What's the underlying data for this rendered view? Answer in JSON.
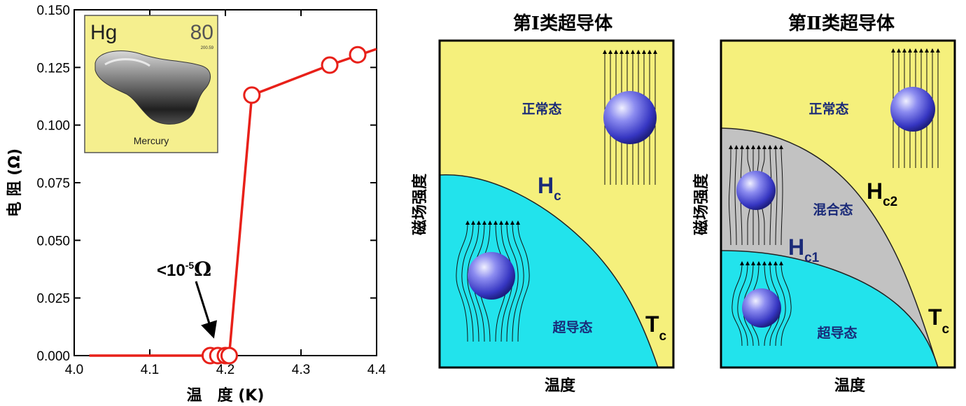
{
  "chart_data": {
    "type": "line",
    "xlabel": "温　度 (K)",
    "ylabel": "电 阻 (Ω)",
    "xlim": [
      4.0,
      4.4
    ],
    "ylim": [
      0.0,
      0.15
    ],
    "x_ticks": [
      "4.0",
      "4.1",
      "4.2",
      "4.3",
      "4.4"
    ],
    "y_ticks": [
      "0.000",
      "0.025",
      "0.050",
      "0.075",
      "0.100",
      "0.125",
      "0.150"
    ],
    "series": [
      {
        "line": [
          [
            4.02,
            0.0
          ],
          [
            4.2,
            0.0
          ],
          [
            4.205,
            0.0
          ],
          [
            4.235,
            0.113
          ],
          [
            4.338,
            0.126
          ],
          [
            4.4,
            0.133
          ]
        ],
        "markers": [
          [
            4.18,
            0.0
          ],
          [
            4.19,
            0.0
          ],
          [
            4.2,
            0.0
          ],
          [
            4.205,
            0.0
          ],
          [
            4.235,
            0.113
          ],
          [
            4.338,
            0.126
          ],
          [
            4.375,
            0.1305
          ]
        ],
        "color": "#e82019"
      }
    ],
    "annotation": {
      "text_prefix": "<10",
      "exponent": "-5",
      "unit": "Ω",
      "points_to": [
        4.185,
        0.0
      ]
    },
    "inset": {
      "symbol": "Hg",
      "number": "80",
      "mass": "200.59",
      "name": "Mercury"
    }
  },
  "diagram_type1": {
    "title": "第Ⅰ类超导体",
    "ylabel": "磁场强度",
    "xlabel": "温度",
    "normal_label": "正常态",
    "super_label": "超导态",
    "hc_main": "H",
    "hc_sub": "c",
    "tc_main": "T",
    "tc_sub": "c"
  },
  "diagram_type2": {
    "title": "第Ⅱ类超导体",
    "ylabel": "磁场强度",
    "xlabel": "温度",
    "normal_label": "正常态",
    "mixed_label": "混合态",
    "super_label": "超导态",
    "hc2_main": "H",
    "hc2_sub": "c2",
    "hc1_main": "H",
    "hc1_sub": "c1",
    "tc_main": "T",
    "tc_sub": "c"
  },
  "colors": {
    "normal": "#f5f07c",
    "superconducting": "#22e3ec",
    "mixed": "#c2c2c2",
    "curve": "#e82019",
    "sphere": "#3c3ccc"
  }
}
